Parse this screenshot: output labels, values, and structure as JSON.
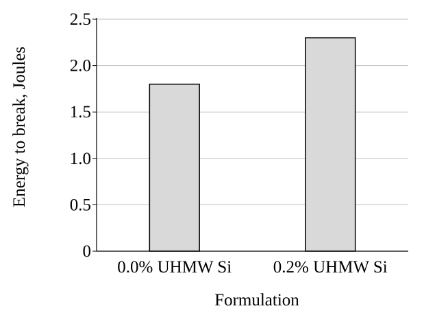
{
  "chart_data": {
    "type": "bar",
    "title": "",
    "xlabel": "Formulation",
    "ylabel": "Energy to break, Joules",
    "categories": [
      "0.0% UHMW Si",
      "0.2% UHMW Si"
    ],
    "values": [
      1.8,
      2.3
    ],
    "ylim": [
      0,
      2.5
    ],
    "yticks": [
      0,
      0.5,
      1.0,
      1.5,
      2.0,
      2.5
    ],
    "ytick_labels": [
      "0",
      "0.5",
      "1.0",
      "1.5",
      "2.0",
      "2.5"
    ],
    "grid": true,
    "colors": {
      "bar_fill": "#d9d9d9",
      "bar_stroke": "#000000",
      "grid": "#bfbfbf",
      "axis": "#000000"
    }
  }
}
